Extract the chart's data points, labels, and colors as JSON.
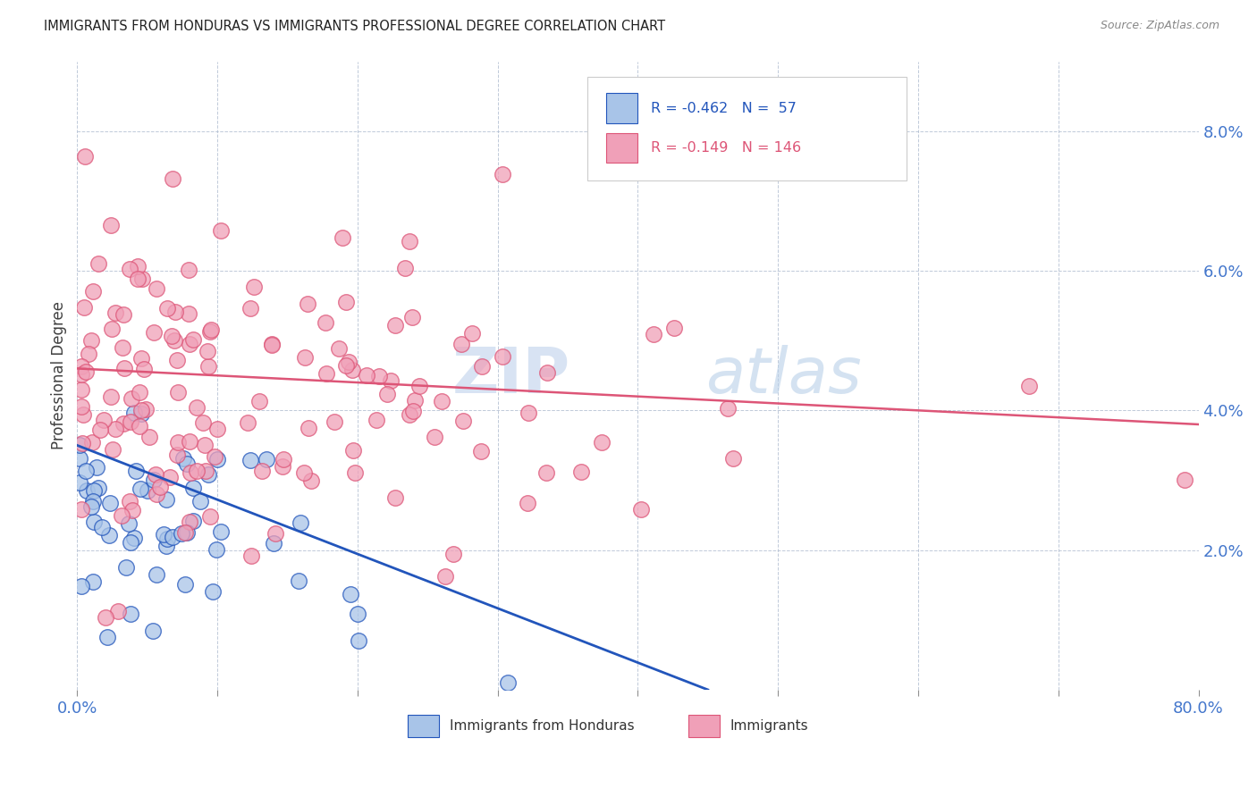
{
  "title": "IMMIGRANTS FROM HONDURAS VS IMMIGRANTS PROFESSIONAL DEGREE CORRELATION CHART",
  "source": "Source: ZipAtlas.com",
  "ylabel": "Professional Degree",
  "legend_label_blue": "Immigrants from Honduras",
  "legend_label_pink": "Immigrants",
  "blue_scatter_color": "#a8c4e8",
  "pink_scatter_color": "#f0a0b8",
  "blue_line_color": "#2255bb",
  "pink_line_color": "#dd5577",
  "watermark_zip": "ZIP",
  "watermark_atlas": "atlas",
  "xlim": [
    0,
    80
  ],
  "ylim": [
    0,
    9.0
  ],
  "blue_line_x0": 0.0,
  "blue_line_y0": 3.5,
  "blue_line_x1": 45.0,
  "blue_line_y1": 0.0,
  "pink_line_x0": 0.0,
  "pink_line_y0": 4.6,
  "pink_line_x1": 80.0,
  "pink_line_y1": 3.8
}
